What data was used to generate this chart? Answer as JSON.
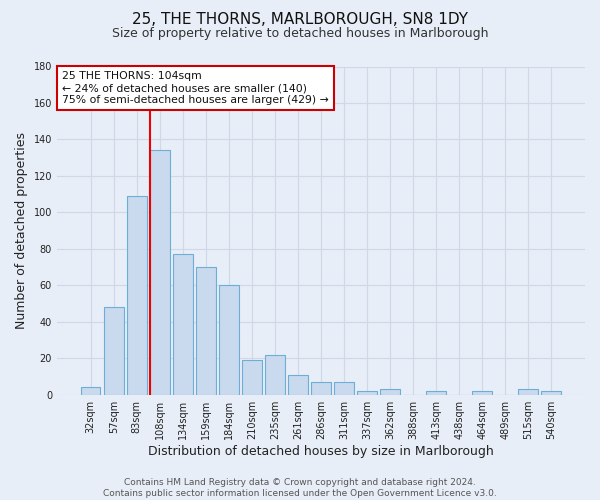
{
  "title": "25, THE THORNS, MARLBOROUGH, SN8 1DY",
  "subtitle": "Size of property relative to detached houses in Marlborough",
  "xlabel": "Distribution of detached houses by size in Marlborough",
  "ylabel": "Number of detached properties",
  "bin_labels": [
    "32sqm",
    "57sqm",
    "83sqm",
    "108sqm",
    "134sqm",
    "159sqm",
    "184sqm",
    "210sqm",
    "235sqm",
    "261sqm",
    "286sqm",
    "311sqm",
    "337sqm",
    "362sqm",
    "388sqm",
    "413sqm",
    "438sqm",
    "464sqm",
    "489sqm",
    "515sqm",
    "540sqm"
  ],
  "bar_values": [
    4,
    48,
    109,
    134,
    77,
    70,
    60,
    19,
    22,
    11,
    7,
    7,
    2,
    3,
    0,
    2,
    0,
    2,
    0,
    3,
    2
  ],
  "bar_color": "#c9d9ee",
  "bar_edge_color": "#6baed6",
  "ylim": [
    0,
    180
  ],
  "yticks": [
    0,
    20,
    40,
    60,
    80,
    100,
    120,
    140,
    160,
    180
  ],
  "vline_color": "#ee0000",
  "annotation_text": "25 THE THORNS: 104sqm\n← 24% of detached houses are smaller (140)\n75% of semi-detached houses are larger (429) →",
  "annotation_box_color": "#ffffff",
  "annotation_box_edge": "#cc0000",
  "footer_line1": "Contains HM Land Registry data © Crown copyright and database right 2024.",
  "footer_line2": "Contains public sector information licensed under the Open Government Licence v3.0.",
  "background_color": "#e8eef7",
  "grid_color": "#d0d8e8",
  "title_fontsize": 11,
  "subtitle_fontsize": 9,
  "axis_label_fontsize": 9,
  "tick_fontsize": 7,
  "footer_fontsize": 6.5
}
